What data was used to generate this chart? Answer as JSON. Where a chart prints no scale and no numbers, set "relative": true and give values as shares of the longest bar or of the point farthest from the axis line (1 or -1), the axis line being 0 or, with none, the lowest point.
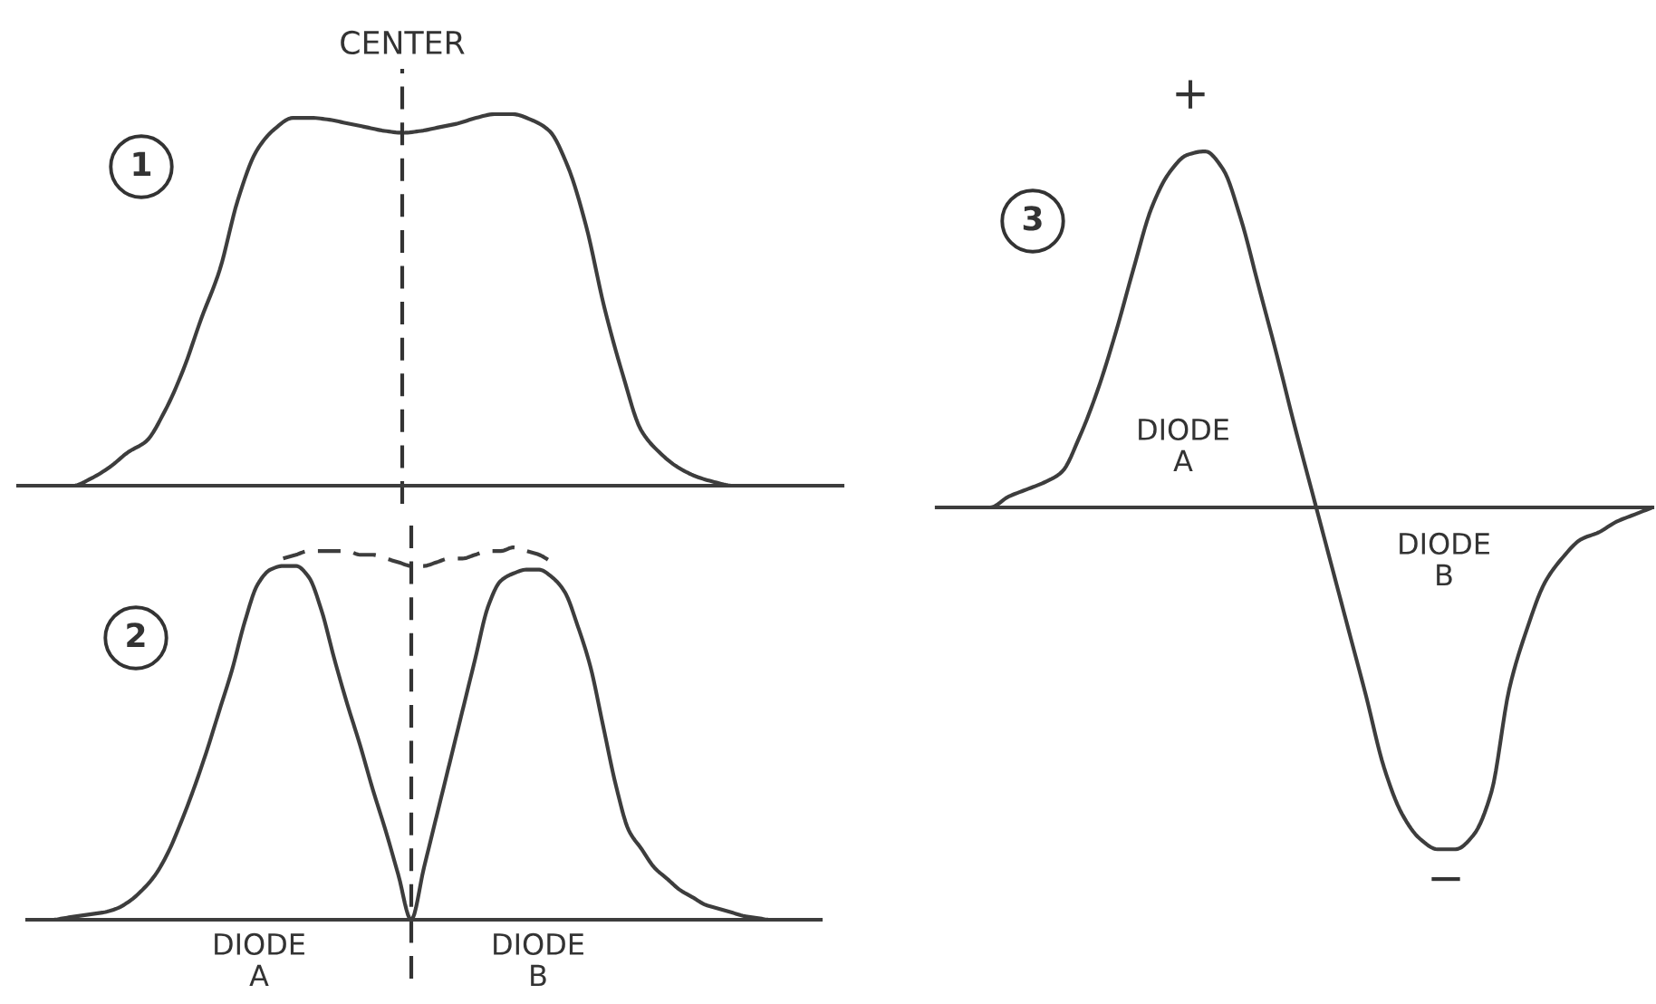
{
  "chart_data": [
    {
      "type": "line",
      "relative": true,
      "color": "#3d3d3d",
      "categories": [
        null,
        null,
        null,
        null,
        null,
        null,
        null,
        null,
        null,
        null,
        null,
        null,
        null,
        null,
        null,
        null,
        null,
        null,
        null,
        null,
        null,
        null,
        null,
        null,
        null,
        null,
        null,
        null,
        null,
        null,
        null,
        null,
        null,
        null,
        null,
        null,
        null,
        null,
        null,
        null,
        null,
        null,
        null,
        null,
        null,
        null
      ],
      "values": [
        0,
        0,
        0,
        0,
        0.02,
        0.05,
        0.09,
        0.12,
        0.2,
        0.31,
        0.45,
        0.58,
        0.77,
        0.9,
        0.96,
        0.99,
        0.99,
        0.985,
        0.975,
        0.965,
        0.955,
        0.95,
        0.955,
        0.965,
        0.975,
        0.99,
        1.0,
        1.0,
        0.985,
        0.955,
        0.86,
        0.7,
        0.48,
        0.3,
        0.15,
        0.09,
        0.05,
        0.025,
        0.01,
        0,
        0,
        0,
        0,
        0,
        0,
        0
      ],
      "annotations": [
        "CENTER",
        "1"
      ]
    },
    {
      "type": "line",
      "relative": true,
      "categories": [
        null,
        null,
        null,
        null,
        null,
        null,
        null,
        null,
        null,
        null,
        null,
        null,
        null,
        null,
        null,
        null,
        null,
        null,
        null,
        null,
        null,
        null,
        null,
        null,
        null,
        null,
        null,
        null,
        null,
        null,
        null,
        null,
        null,
        null,
        null,
        null,
        null,
        null,
        null,
        null,
        null,
        null,
        null,
        null,
        null,
        null,
        null,
        null,
        null,
        null,
        null,
        null,
        null,
        null,
        null,
        null,
        null,
        null,
        null,
        null,
        null,
        null,
        null
      ],
      "series": [
        {
          "color": "#3d3d3d",
          "line_style": "solid",
          "values": [
            0,
            0,
            0,
            0.005,
            0.01,
            0.015,
            0.02,
            0.03,
            0.05,
            0.08,
            0.12,
            0.18,
            0.26,
            0.35,
            0.45,
            0.56,
            0.67,
            0.8,
            0.9,
            0.94,
            0.95,
            0.95,
            0.92,
            0.83,
            0.7,
            0.58,
            0.47,
            0.35,
            0.24,
            0.12,
            0,
            0.14,
            0.28,
            0.42,
            0.56,
            0.7,
            0.84,
            0.91,
            0.93,
            0.94,
            0.94,
            0.92,
            0.88,
            0.79,
            0.68,
            0.52,
            0.36,
            0.24,
            0.19,
            0.14,
            0.11,
            0.08,
            0.06,
            0.04,
            0.03,
            0.02,
            0.01,
            0.005,
            0,
            0,
            0,
            0,
            0
          ]
        },
        {
          "color": "#3d3d3d",
          "line_style": "dashed",
          "values": [
            null,
            null,
            null,
            null,
            null,
            null,
            null,
            null,
            null,
            null,
            null,
            null,
            null,
            null,
            null,
            null,
            null,
            null,
            null,
            null,
            0.97,
            0.98,
            0.99,
            0.99,
            0.99,
            0.99,
            0.98,
            0.98,
            0.97,
            0.96,
            0.95,
            0.95,
            0.96,
            0.97,
            0.97,
            0.98,
            0.99,
            0.99,
            1.0,
            0.99,
            0.98,
            0.96,
            null,
            null,
            null,
            null,
            null,
            null,
            null,
            null,
            null,
            null,
            null,
            null,
            null,
            null,
            null,
            null,
            null,
            null,
            null,
            null,
            null
          ]
        }
      ],
      "annotations": [
        "2",
        "DIODE\nA",
        "DIODE\nB"
      ]
    },
    {
      "type": "line",
      "relative": true,
      "color": "#3d3d3d",
      "categories": [
        null,
        null,
        null,
        null,
        null,
        null,
        null,
        null,
        null,
        null,
        null,
        null,
        null,
        null,
        null,
        null,
        null,
        null,
        null,
        null,
        null,
        null,
        null,
        null,
        null,
        null,
        null,
        null,
        null,
        null,
        null,
        null,
        null,
        null,
        null,
        null,
        null,
        null,
        null,
        null,
        null
      ],
      "values": [
        0,
        0,
        0,
        0,
        0.03,
        0.05,
        0.07,
        0.1,
        0.2,
        0.33,
        0.49,
        0.67,
        0.84,
        0.94,
        0.99,
        1.0,
        0.95,
        0.81,
        0.62,
        0.43,
        0.23,
        0.04,
        -0.15,
        -0.34,
        -0.53,
        -0.73,
        -0.86,
        -0.93,
        -0.96,
        -0.96,
        -0.92,
        -0.8,
        -0.51,
        -0.34,
        -0.21,
        -0.14,
        -0.09,
        -0.07,
        -0.04,
        -0.02,
        0
      ],
      "annotations": [
        "3",
        "+",
        "−",
        "DIODE\nA",
        "DIODE\nB"
      ]
    }
  ]
}
